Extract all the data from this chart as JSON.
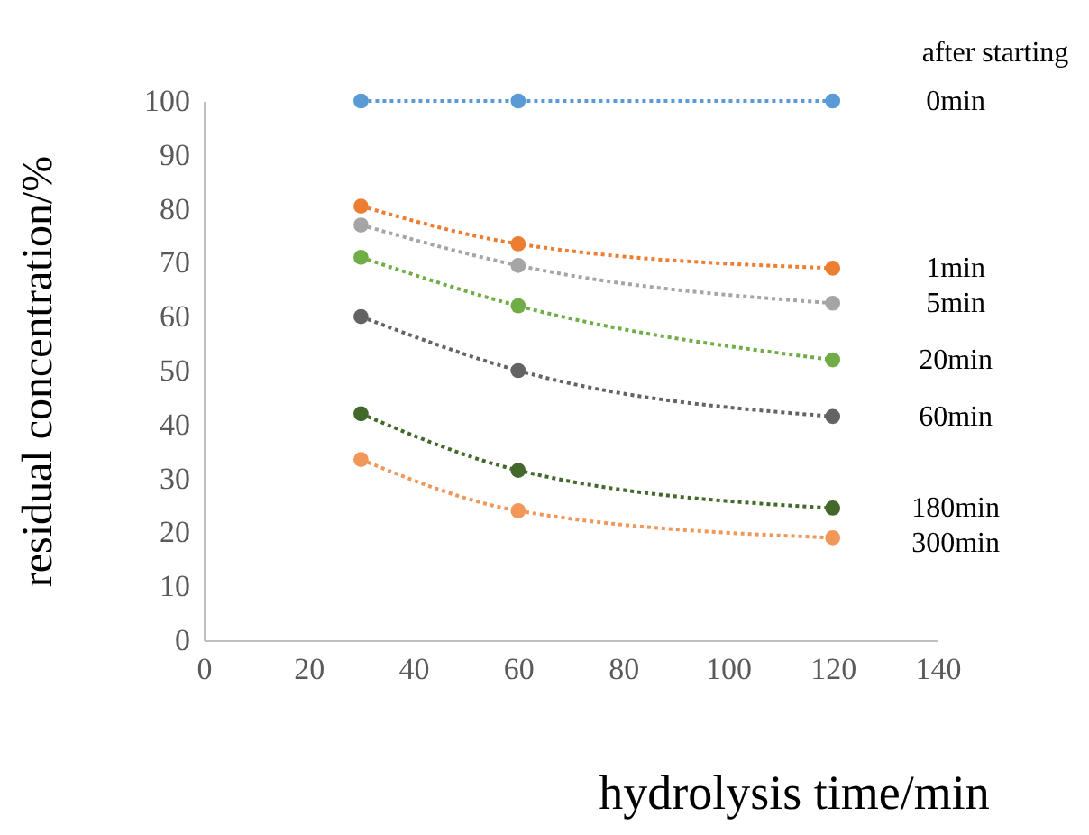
{
  "chart_data": {
    "type": "line",
    "xlabel": "hydrolysis time/min",
    "ylabel": "residual concentration/%",
    "legend_title": "after starting",
    "x": [
      30,
      60,
      120
    ],
    "series": [
      {
        "name": "0min",
        "color": "#5b9bd5",
        "values": [
          100,
          100,
          100
        ]
      },
      {
        "name": "1min",
        "color": "#ed7d31",
        "values": [
          80.5,
          73.5,
          69
        ]
      },
      {
        "name": "5min",
        "color": "#a5a5a5",
        "values": [
          77,
          69.5,
          62.5
        ]
      },
      {
        "name": "20min",
        "color": "#70ad47",
        "values": [
          71,
          62,
          52
        ]
      },
      {
        "name": "60min",
        "color": "#636363",
        "values": [
          60,
          50,
          41.5
        ]
      },
      {
        "name": "180min",
        "color": "#43682b",
        "values": [
          42,
          31.5,
          24.5
        ]
      },
      {
        "name": "300min",
        "color": "#f1975a",
        "values": [
          33.5,
          24,
          19
        ]
      }
    ],
    "xlim": [
      0,
      140
    ],
    "xticks": [
      0,
      20,
      40,
      60,
      80,
      100,
      120,
      140
    ],
    "ylim": [
      0,
      100
    ],
    "yticks": [
      0,
      10,
      20,
      30,
      40,
      50,
      60,
      70,
      80,
      90,
      100
    ],
    "grid": false,
    "legend": "right",
    "marker": "circle",
    "line_style": "dotted"
  }
}
